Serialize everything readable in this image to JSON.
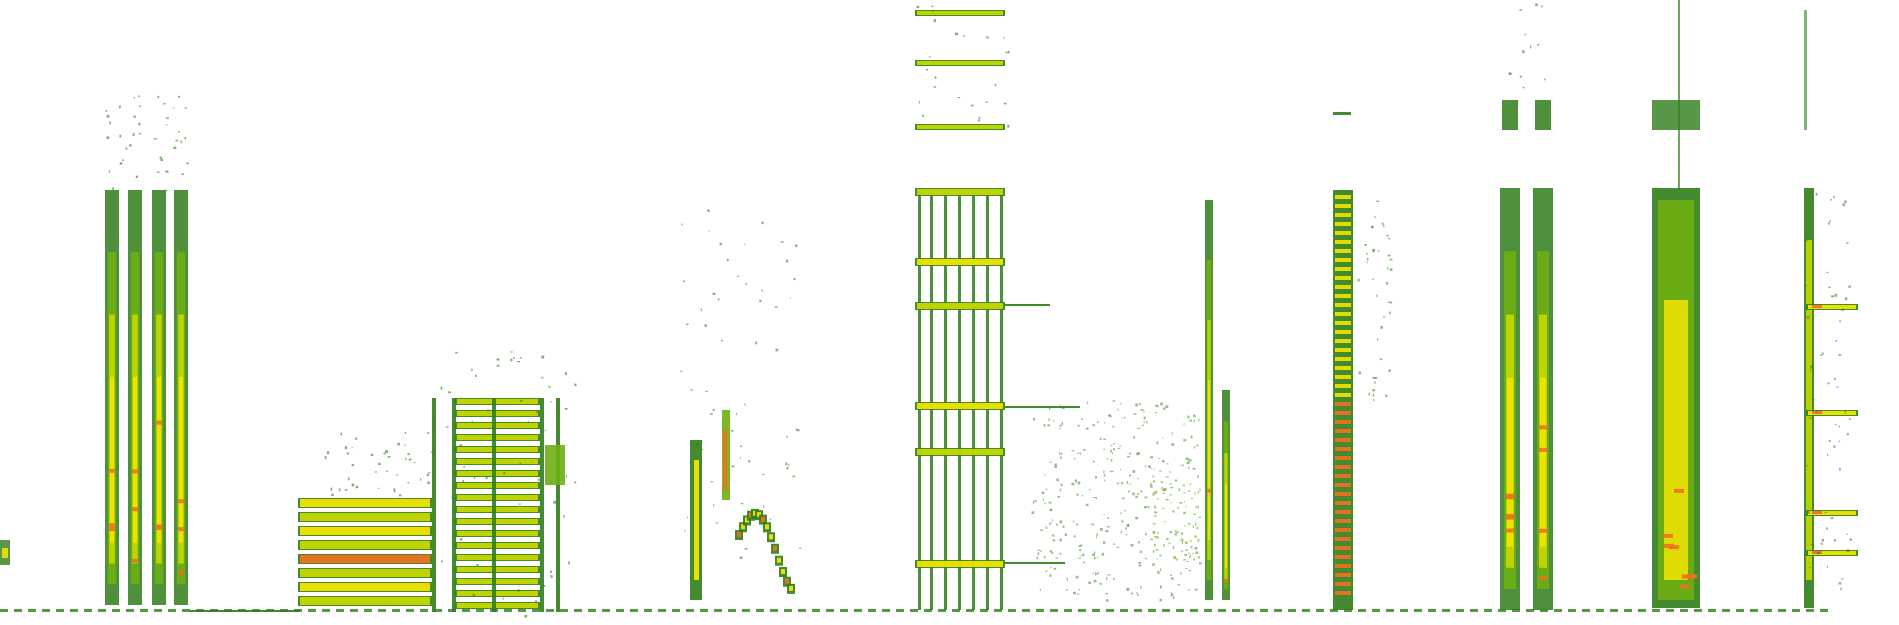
{
  "image": {
    "kind": "spectrogram",
    "background": "#ffffff",
    "palette": {
      "low": "#2f7d1a",
      "mid_low": "#6fae12",
      "mid": "#c7d800",
      "high": "#f2e400",
      "peak": "#f07020"
    },
    "segment_count": 15
  }
}
